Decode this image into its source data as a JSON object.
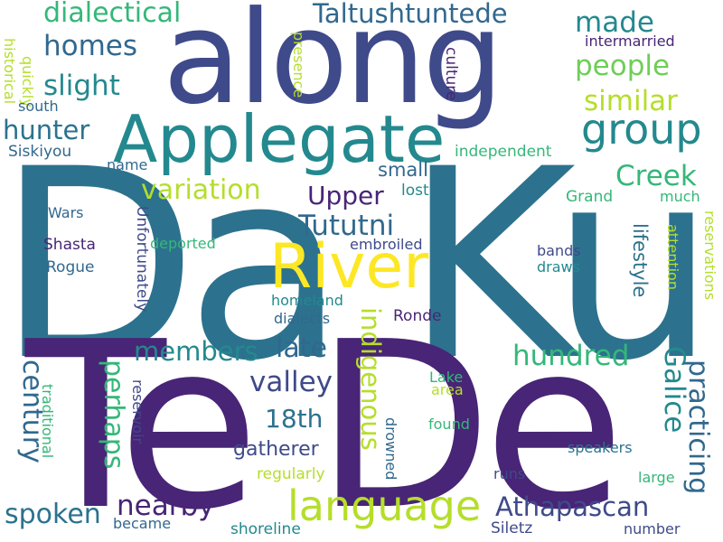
{
  "palette": {
    "navy": "#3f4a8a",
    "purple": "#482576",
    "teal": "#2c728e",
    "teal_blue": "#31688e",
    "green_teal": "#23898e",
    "green": "#35b779",
    "light_green": "#6ece58",
    "lime": "#b5de2b",
    "yellow": "#fde725",
    "dark_purple": "#440154",
    "background": "#ffffff"
  },
  "words": {
    "dku": "Da Ku",
    "tede": "Te De",
    "along": "along",
    "applegate": "Applegate",
    "river": "River",
    "group": "group",
    "language": "language",
    "athapascan": "Athapascan",
    "dialectical": "dialectical",
    "taltushtuntede": "Taltushtuntede",
    "made": "made",
    "homes": "homes",
    "slight": "slight",
    "people": "people",
    "similar": "similar",
    "hunter": "hunter",
    "creek": "Creek",
    "variation": "variation",
    "upper": "Upper",
    "tututni": "Tututni",
    "small": "small",
    "lost": "lost",
    "members": "members",
    "late": "late",
    "hundred": "hundred",
    "valley": "valley",
    "eighteenth": "18th",
    "perhaps": "perhaps",
    "century": "century",
    "indigenous": "indigenous",
    "galice": "Galice",
    "practicing": "practicing",
    "lifestyle": "lifestyle",
    "nearby": "nearby",
    "gatherer": "gatherer",
    "spoken": "spoken",
    "culture": "culture",
    "presence": "presence",
    "historical": "historical",
    "quickly": "quickly",
    "south": "south",
    "siskiyou": "Siskiyou",
    "name": "name",
    "independent": "independent",
    "intermarried": "intermarried",
    "grand": "Grand",
    "much": "much",
    "wars": "Wars",
    "shasta": "Shasta",
    "deported": "deported",
    "embroiled": "embroiled",
    "rogue": "Rogue",
    "bands": "bands",
    "draws": "draws",
    "attention": "attention",
    "reservations": "reservations",
    "unfortunately": "Unfortunately",
    "homeland": "homeland",
    "dialects": "dialects",
    "ronde": "Ronde",
    "reservoir": "reservoir",
    "traditional": "traditional",
    "lake": "Lake",
    "area": "area",
    "drowned": "drowned",
    "found": "found",
    "speakers": "speakers",
    "regularly": "regularly",
    "runs": "runs",
    "large": "large",
    "became": "became",
    "shoreline": "shoreline",
    "siletz": "Siletz",
    "number": "number"
  }
}
